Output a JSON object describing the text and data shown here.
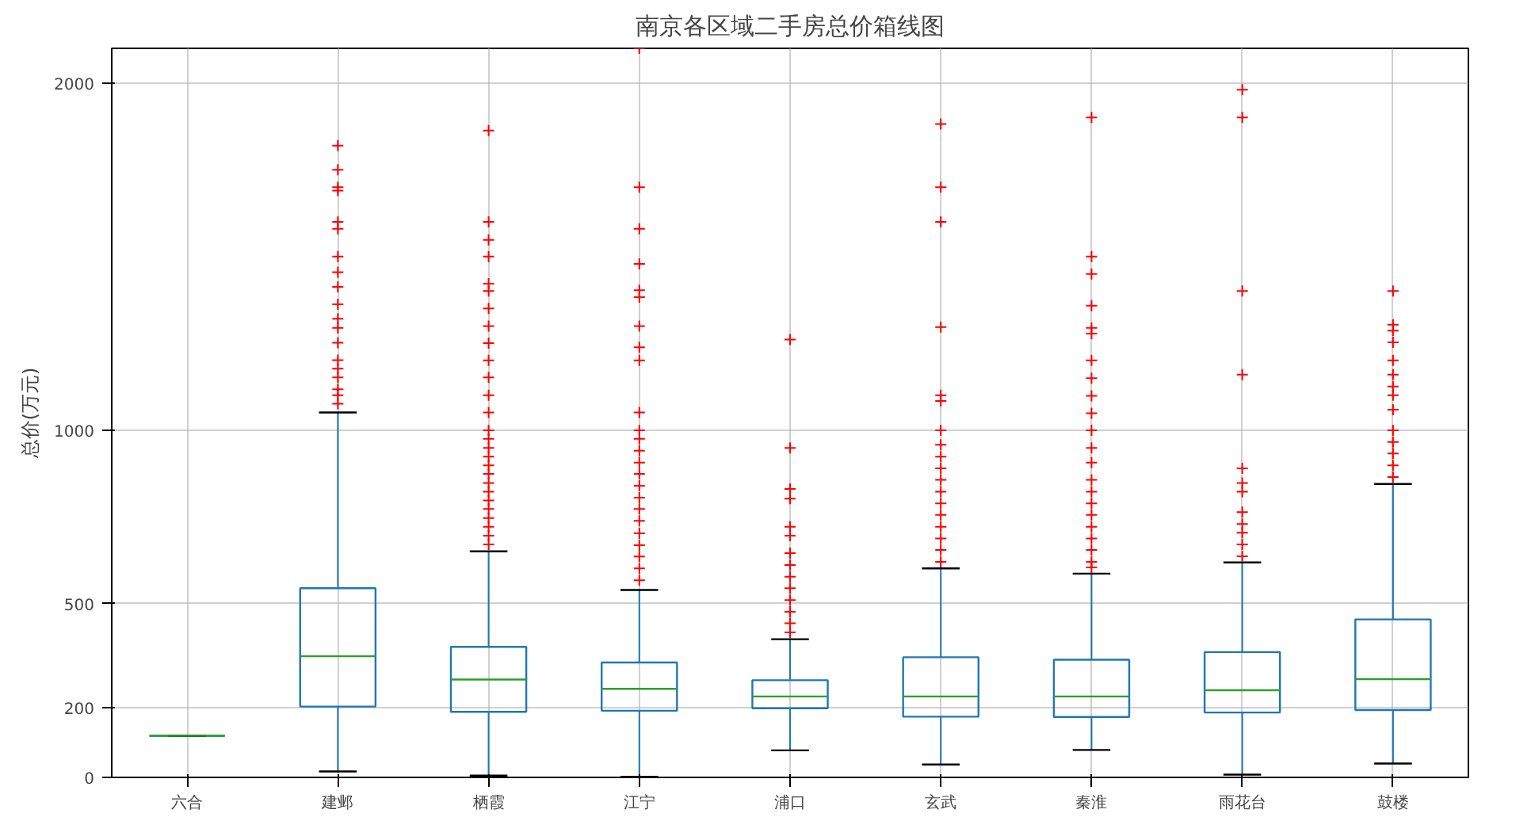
{
  "chart_data": {
    "type": "box",
    "title": "南京各区域二手房总价箱线图",
    "ylabel": "总价(万元)",
    "categories": [
      "六合",
      "建邺",
      "栖霞",
      "江宁",
      "浦口",
      "玄武",
      "秦淮",
      "雨花台",
      "鼓楼"
    ],
    "color": "#1f77b4",
    "boxes": [
      {
        "low": 120,
        "q1": 120,
        "median": 120,
        "q3": 120,
        "high": 120
      },
      {
        "low": 17,
        "q1": 204,
        "median": 349,
        "q3": 545,
        "high": 1051,
        "outliers": [
          1820,
          1750,
          1700,
          1690,
          1600,
          1580,
          1500,
          1455,
          1413,
          1363,
          1321,
          1295,
          1252,
          1202,
          1177,
          1152,
          1118,
          1101,
          1076
        ]
      },
      {
        "low": 5,
        "q1": 189,
        "median": 282,
        "q3": 376,
        "high": 651,
        "outliers": [
          1863,
          1600,
          1548,
          1500,
          1422,
          1401,
          1351,
          1300,
          1251,
          1201,
          1152,
          1101,
          1051,
          1000,
          975,
          949,
          924,
          899,
          874,
          848,
          823,
          798,
          773,
          747,
          722,
          696,
          671
        ]
      },
      {
        "low": 2,
        "q1": 192,
        "median": 255,
        "q3": 331,
        "high": 540,
        "outliers": [
          2100,
          1700,
          1580,
          1479,
          1403,
          1383,
          1300,
          1239,
          1201,
          1051,
          1000,
          975,
          941,
          907,
          874,
          840,
          806,
          773,
          739,
          703,
          669,
          636,
          602,
          568
        ]
      },
      {
        "low": 78,
        "q1": 199,
        "median": 233,
        "q3": 280,
        "high": 398,
        "outliers": [
          1261,
          949,
          831,
          803,
          722,
          696,
          646,
          612,
          578,
          545,
          511,
          477,
          444,
          418
        ]
      },
      {
        "low": 37,
        "q1": 175,
        "median": 233,
        "q3": 346,
        "high": 602,
        "outliers": [
          1882,
          1700,
          1600,
          1297,
          1101,
          1084,
          1000,
          958,
          924,
          890,
          857,
          823,
          789,
          756,
          722,
          688,
          655,
          621
        ]
      },
      {
        "low": 79,
        "q1": 174,
        "median": 233,
        "q3": 339,
        "high": 587,
        "outliers": [
          1901,
          1500,
          1450,
          1359,
          1295,
          1278,
          1201,
          1150,
          1099,
          1049,
          1000,
          949,
          907,
          857,
          823,
          789,
          756,
          722,
          688,
          655,
          621,
          605
        ]
      },
      {
        "low": 8,
        "q1": 187,
        "median": 251,
        "q3": 361,
        "high": 619,
        "outliers": [
          1981,
          1901,
          1401,
          1160,
          890,
          848,
          823,
          764,
          730,
          705,
          671,
          637
        ]
      },
      {
        "low": 40,
        "q1": 194,
        "median": 283,
        "q3": 455,
        "high": 845,
        "outliers": [
          1401,
          1304,
          1287,
          1253,
          1201,
          1160,
          1126,
          1101,
          1059,
          1000,
          966,
          933,
          899,
          865
        ]
      }
    ],
    "ylim": [
      0,
      2100
    ],
    "yticks": [
      0,
      200,
      500,
      1000,
      2000
    ],
    "grid": true,
    "marker": "cross"
  }
}
